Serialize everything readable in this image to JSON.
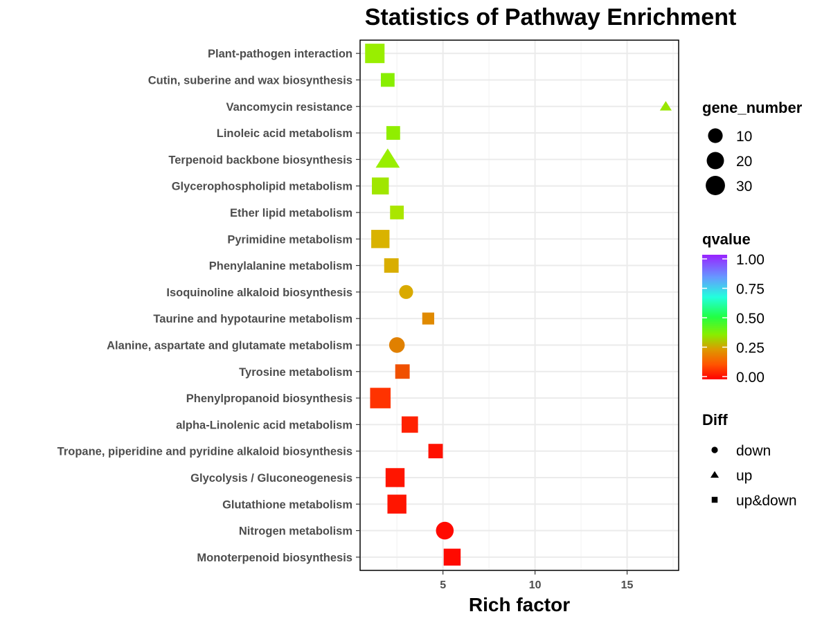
{
  "chart_data": {
    "type": "scatter",
    "title": "Statistics of Pathway Enrichment",
    "xlabel": "Rich factor",
    "ylabel": "",
    "xlim": [
      0.5,
      17.8
    ],
    "x_ticks": [
      5,
      10,
      15
    ],
    "x_tick_labels": [
      "5",
      "10",
      "15"
    ],
    "grid": true,
    "categories": [
      "Plant-pathogen interaction",
      "Cutin, suberine and wax biosynthesis",
      "Vancomycin resistance",
      "Linoleic acid metabolism",
      "Terpenoid backbone biosynthesis",
      "Glycerophospholipid metabolism",
      "Ether lipid metabolism",
      "Pyrimidine metabolism",
      "Phenylalanine metabolism",
      "Isoquinoline alkaloid biosynthesis",
      "Taurine and hypotaurine metabolism",
      "Alanine, aspartate and glutamate metabolism",
      "Tyrosine metabolism",
      "Phenylpropanoid biosynthesis",
      "alpha-Linolenic acid metabolism",
      "Tropane, piperidine and pyridine alkaloid biosynthesis",
      "Glycolysis / Gluconeogenesis",
      "Glutathione metabolism",
      "Nitrogen metabolism",
      "Monoterpenoid biosynthesis"
    ],
    "points": [
      {
        "pathway": "Plant-pathogen interaction",
        "rich_factor": 1.3,
        "gene_number": 30,
        "qvalue": 0.32,
        "diff": "up&down",
        "color": "#99ee00"
      },
      {
        "pathway": "Cutin, suberine and wax biosynthesis",
        "rich_factor": 2.0,
        "gene_number": 10,
        "qvalue": 0.34,
        "diff": "up&down",
        "color": "#88ee00"
      },
      {
        "pathway": "Vancomycin resistance",
        "rich_factor": 17.1,
        "gene_number": 1,
        "qvalue": 0.3,
        "diff": "up",
        "color": "#99e600"
      },
      {
        "pathway": "Linoleic acid metabolism",
        "rich_factor": 2.3,
        "gene_number": 10,
        "qvalue": 0.33,
        "diff": "up&down",
        "color": "#90ee00"
      },
      {
        "pathway": "Terpenoid backbone biosynthesis",
        "rich_factor": 2.0,
        "gene_number": 20,
        "qvalue": 0.32,
        "diff": "up",
        "color": "#99ee00"
      },
      {
        "pathway": "Glycerophospholipid metabolism",
        "rich_factor": 1.6,
        "gene_number": 20,
        "qvalue": 0.3,
        "diff": "up&down",
        "color": "#a0e600"
      },
      {
        "pathway": "Ether lipid metabolism",
        "rich_factor": 2.5,
        "gene_number": 10,
        "qvalue": 0.29,
        "diff": "up&down",
        "color": "#aae600"
      },
      {
        "pathway": "Pyrimidine metabolism",
        "rich_factor": 1.6,
        "gene_number": 25,
        "qvalue": 0.2,
        "diff": "up&down",
        "color": "#d9b300"
      },
      {
        "pathway": "Phenylalanine metabolism",
        "rich_factor": 2.2,
        "gene_number": 12,
        "qvalue": 0.19,
        "diff": "up&down",
        "color": "#d9ae00"
      },
      {
        "pathway": "Isoquinoline alkaloid biosynthesis",
        "rich_factor": 3.0,
        "gene_number": 8,
        "qvalue": 0.18,
        "diff": "down",
        "color": "#d9aa00"
      },
      {
        "pathway": "Taurine and hypotaurine metabolism",
        "rich_factor": 4.2,
        "gene_number": 6,
        "qvalue": 0.14,
        "diff": "up&down",
        "color": "#e08a00"
      },
      {
        "pathway": "Alanine, aspartate and glutamate metabolism",
        "rich_factor": 2.5,
        "gene_number": 12,
        "qvalue": 0.13,
        "diff": "down",
        "color": "#e08000"
      },
      {
        "pathway": "Tyrosine metabolism",
        "rich_factor": 2.8,
        "gene_number": 12,
        "qvalue": 0.08,
        "diff": "up&down",
        "color": "#f05000"
      },
      {
        "pathway": "Phenylpropanoid biosynthesis",
        "rich_factor": 1.6,
        "gene_number": 35,
        "qvalue": 0.05,
        "diff": "up&down",
        "color": "#ff3300"
      },
      {
        "pathway": "alpha-Linolenic acid metabolism",
        "rich_factor": 3.2,
        "gene_number": 18,
        "qvalue": 0.03,
        "diff": "up&down",
        "color": "#ff2200"
      },
      {
        "pathway": "Tropane, piperidine and pyridine alkaloid biosynthesis",
        "rich_factor": 4.6,
        "gene_number": 12,
        "qvalue": 0.01,
        "diff": "up&down",
        "color": "#ff1100"
      },
      {
        "pathway": "Glycolysis / Gluconeogenesis",
        "rich_factor": 2.4,
        "gene_number": 28,
        "qvalue": 0.01,
        "diff": "up&down",
        "color": "#ff1500"
      },
      {
        "pathway": "Glutathione metabolism",
        "rich_factor": 2.5,
        "gene_number": 28,
        "qvalue": 0.01,
        "diff": "up&down",
        "color": "#ff1500"
      },
      {
        "pathway": "Nitrogen metabolism",
        "rich_factor": 5.1,
        "gene_number": 18,
        "qvalue": 0.0,
        "diff": "down",
        "color": "#ff0a00"
      },
      {
        "pathway": "Monoterpenoid biosynthesis",
        "rich_factor": 5.5,
        "gene_number": 20,
        "qvalue": 0.0,
        "diff": "up&down",
        "color": "#ff0a00"
      }
    ],
    "legends": {
      "gene_number": {
        "title": "gene_number",
        "values": [
          10,
          20,
          30
        ],
        "labels": [
          "10",
          "20",
          "30"
        ]
      },
      "qvalue": {
        "title": "qvalue",
        "range": [
          0,
          1
        ],
        "tick_values": [
          1.0,
          0.75,
          0.5,
          0.25,
          0.0
        ],
        "tick_labels": [
          "1.00",
          "0.75",
          "0.50",
          "0.25",
          "0.00"
        ],
        "colors": [
          "#ff0000",
          "#ff5500",
          "#dd9900",
          "#88ee00",
          "#22ff44",
          "#22ffdd",
          "#6699ff",
          "#9922ff"
        ]
      },
      "diff": {
        "title": "Diff",
        "items": [
          {
            "label": "down",
            "shape": "circle"
          },
          {
            "label": "up",
            "shape": "triangle"
          },
          {
            "label": "up&down",
            "shape": "square"
          }
        ]
      },
      "placement": "right"
    }
  }
}
